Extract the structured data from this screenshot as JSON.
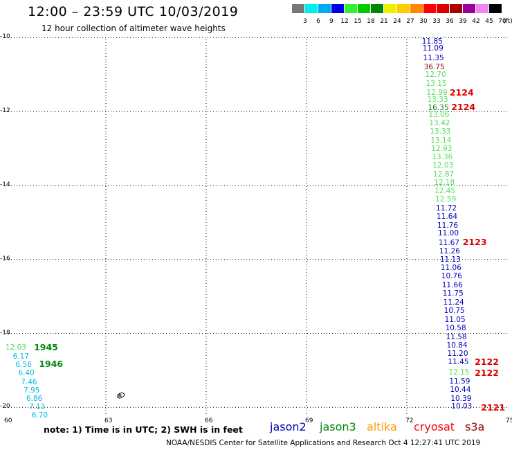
{
  "title": "12:00 – 23:59 UTC 10/03/2019",
  "subtitle": "12 hour collection of altimeter wave heights",
  "colors": {
    "jason2": "#0000bb",
    "jason3": "#00880a",
    "altika": "#ff9900",
    "cryosat": "#ff0000",
    "s3a": "#990000",
    "cyan": "#00bbdd",
    "lightgreen": "#55dd55",
    "darkred": "#880000",
    "red": "#dd0000",
    "grid": "#000000"
  },
  "legend": {
    "colors": [
      "#777777",
      "#00eeee",
      "#00aaee",
      "#0000ee",
      "#33ee33",
      "#00cc00",
      "#008800",
      "#eeee00",
      "#ffcc00",
      "#ff8800",
      "#ff0000",
      "#dd0000",
      "#aa0000",
      "#990099",
      "#ee88ee",
      "#000000"
    ],
    "values": [
      "3",
      "6",
      "9",
      "12",
      "15",
      "18",
      "21",
      "24",
      "27",
      "30",
      "33",
      "36",
      "39",
      "42",
      "45",
      "70"
    ],
    "unit": "(ft)"
  },
  "axes": {
    "lon_ticks": [
      "60",
      "63",
      "66",
      "69",
      "72",
      "75"
    ],
    "lat_ticks": [
      "-10",
      "-12",
      "-14",
      "-16",
      "-18",
      "-20"
    ]
  },
  "map": {
    "lon_range": [
      60,
      75
    ],
    "lat_range": [
      -10.05,
      -20.2
    ],
    "points": [
      {
        "v": "11.85",
        "lon": 72.45,
        "lat": -10.1,
        "c": "jason2"
      },
      {
        "v": "11.09",
        "lon": 72.47,
        "lat": -10.3,
        "c": "jason2"
      },
      {
        "v": "11.35",
        "lon": 72.49,
        "lat": -10.55,
        "c": "jason2"
      },
      {
        "v": "36.75",
        "lon": 72.51,
        "lat": -10.8,
        "c": "s3a"
      },
      {
        "v": "12.70",
        "lon": 72.55,
        "lat": -11.0,
        "c": "lightgreen"
      },
      {
        "v": "13.15",
        "lon": 72.57,
        "lat": -11.25,
        "c": "lightgreen"
      },
      {
        "v": "12.99",
        "lon": 72.59,
        "lat": -11.5,
        "c": "lightgreen"
      },
      {
        "v": "13.33",
        "lon": 72.61,
        "lat": -11.68,
        "c": "lightgreen"
      },
      {
        "v": "16.35",
        "lon": 72.63,
        "lat": -11.9,
        "c": "jason3"
      },
      {
        "v": "13.06",
        "lon": 72.65,
        "lat": -12.1,
        "c": "lightgreen"
      },
      {
        "v": "13.42",
        "lon": 72.67,
        "lat": -12.32,
        "c": "lightgreen"
      },
      {
        "v": "13.33",
        "lon": 72.69,
        "lat": -12.55,
        "c": "lightgreen"
      },
      {
        "v": "13.14",
        "lon": 72.71,
        "lat": -12.78,
        "c": "lightgreen"
      },
      {
        "v": "12.93",
        "lon": 72.73,
        "lat": -13.0,
        "c": "lightgreen"
      },
      {
        "v": "13.36",
        "lon": 72.75,
        "lat": -13.23,
        "c": "lightgreen"
      },
      {
        "v": "12.03",
        "lon": 72.77,
        "lat": -13.45,
        "c": "lightgreen"
      },
      {
        "v": "12.87",
        "lon": 72.79,
        "lat": -13.7,
        "c": "lightgreen"
      },
      {
        "v": "12.18",
        "lon": 72.81,
        "lat": -13.92,
        "c": "lightgreen"
      },
      {
        "v": "12.45",
        "lon": 72.83,
        "lat": -14.15,
        "c": "lightgreen"
      },
      {
        "v": "12.59",
        "lon": 72.85,
        "lat": -14.38,
        "c": "lightgreen"
      },
      {
        "v": "11.72",
        "lon": 72.87,
        "lat": -14.62,
        "c": "jason2"
      },
      {
        "v": "11.64",
        "lon": 72.89,
        "lat": -14.85,
        "c": "jason2"
      },
      {
        "v": "11.76",
        "lon": 72.91,
        "lat": -15.08,
        "c": "jason2"
      },
      {
        "v": "11.00",
        "lon": 72.93,
        "lat": -15.3,
        "c": "jason2"
      },
      {
        "v": "11.67",
        "lon": 72.95,
        "lat": -15.55,
        "c": "jason2"
      },
      {
        "v": "11.26",
        "lon": 72.97,
        "lat": -15.78,
        "c": "jason2"
      },
      {
        "v": "11.13",
        "lon": 72.99,
        "lat": -16.0,
        "c": "jason2"
      },
      {
        "v": "11.06",
        "lon": 73.01,
        "lat": -16.23,
        "c": "jason2"
      },
      {
        "v": "10.76",
        "lon": 73.03,
        "lat": -16.46,
        "c": "jason2"
      },
      {
        "v": "11.66",
        "lon": 73.05,
        "lat": -16.69,
        "c": "jason2"
      },
      {
        "v": "11.75",
        "lon": 73.07,
        "lat": -16.93,
        "c": "jason2"
      },
      {
        "v": "11.24",
        "lon": 73.09,
        "lat": -17.16,
        "c": "jason2"
      },
      {
        "v": "10.75",
        "lon": 73.11,
        "lat": -17.4,
        "c": "jason2"
      },
      {
        "v": "11.05",
        "lon": 73.13,
        "lat": -17.63,
        "c": "jason2"
      },
      {
        "v": "10.58",
        "lon": 73.15,
        "lat": -17.86,
        "c": "jason2"
      },
      {
        "v": "11.58",
        "lon": 73.17,
        "lat": -18.1,
        "c": "jason2"
      },
      {
        "v": "10.84",
        "lon": 73.19,
        "lat": -18.32,
        "c": "jason2"
      },
      {
        "v": "11.20",
        "lon": 73.21,
        "lat": -18.55,
        "c": "jason2"
      },
      {
        "v": "11.45",
        "lon": 73.23,
        "lat": -18.78,
        "c": "jason2"
      },
      {
        "v": "12.15",
        "lon": 73.25,
        "lat": -19.05,
        "c": "lightgreen"
      },
      {
        "v": "11.59",
        "lon": 73.27,
        "lat": -19.3,
        "c": "jason2"
      },
      {
        "v": "10.44",
        "lon": 73.29,
        "lat": -19.53,
        "c": "jason2"
      },
      {
        "v": "10.39",
        "lon": 73.31,
        "lat": -19.76,
        "c": "jason2"
      },
      {
        "v": "10.03",
        "lon": 73.33,
        "lat": -19.98,
        "c": "jason2"
      },
      {
        "v": "12.03",
        "lon": 60.0,
        "lat": -18.38,
        "c": "lightgreen"
      },
      {
        "v": "6.17",
        "lon": 60.22,
        "lat": -18.62,
        "c": "cyan"
      },
      {
        "v": "6.56",
        "lon": 60.3,
        "lat": -18.85,
        "c": "cyan"
      },
      {
        "v": "6.40",
        "lon": 60.38,
        "lat": -19.08,
        "c": "cyan"
      },
      {
        "v": "7.46",
        "lon": 60.46,
        "lat": -19.32,
        "c": "cyan"
      },
      {
        "v": "7.95",
        "lon": 60.54,
        "lat": -19.54,
        "c": "cyan"
      },
      {
        "v": "6.86",
        "lon": 60.62,
        "lat": -19.77,
        "c": "cyan"
      },
      {
        "v": "7.13",
        "lon": 60.7,
        "lat": -20.0,
        "c": "cyan"
      },
      {
        "v": "6.70",
        "lon": 60.78,
        "lat": -20.22,
        "c": "cyan"
      }
    ],
    "time_labels": [
      {
        "t": "2124",
        "lon": 73.28,
        "lat": -11.49,
        "c": "red"
      },
      {
        "t": "2124",
        "lon": 73.33,
        "lat": -11.89,
        "c": "red"
      },
      {
        "t": "2123",
        "lon": 73.67,
        "lat": -15.54,
        "c": "red"
      },
      {
        "t": "2122",
        "lon": 74.03,
        "lat": -18.77,
        "c": "red"
      },
      {
        "t": "2122",
        "lon": 74.03,
        "lat": -19.08,
        "c": "red"
      },
      {
        "t": "2121",
        "lon": 74.22,
        "lat": -20.01,
        "c": "red"
      },
      {
        "t": "1945",
        "lon": 60.85,
        "lat": -18.38,
        "c": "jason3"
      },
      {
        "t": "1946",
        "lon": 61.0,
        "lat": -18.84,
        "c": "jason3"
      }
    ]
  },
  "note": "note: 1) Time is in UTC; 2) SWH is in feet",
  "satellites": [
    {
      "name": "jason2",
      "c": "jason2"
    },
    {
      "name": "jason3",
      "c": "jason3"
    },
    {
      "name": "altika",
      "c": "altika"
    },
    {
      "name": "cryosat",
      "c": "cryosat"
    },
    {
      "name": "s3a",
      "c": "s3a"
    }
  ],
  "credit": "NOAA/NESDIS Center for Satellite Applications and Research   Oct  4 12:27:41 UTC 2019"
}
